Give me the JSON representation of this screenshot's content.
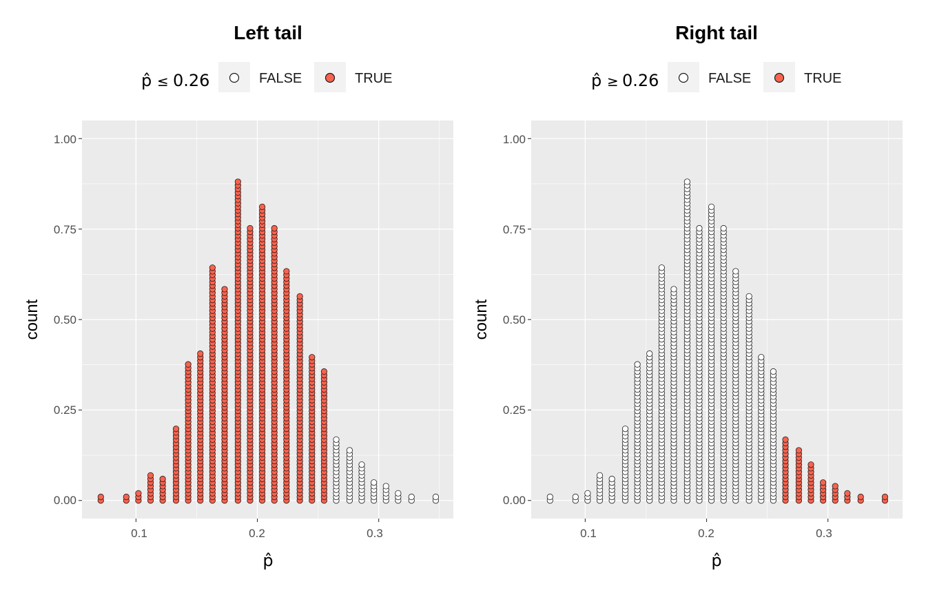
{
  "chart_data": [
    {
      "type": "scatter",
      "title": "Left tail",
      "legend": {
        "title_symbol": "p̂",
        "title_relation": "≤",
        "title_value": "0.26",
        "entries": [
          {
            "label": "FALSE",
            "fill": "#ffffff"
          },
          {
            "label": "TRUE",
            "fill": "#f8634e"
          }
        ],
        "position": "top"
      },
      "xlabel": "p̂",
      "ylabel": "count",
      "xlim": [
        0.0555,
        0.3615
      ],
      "ylim": [
        -0.05,
        1.05
      ],
      "x_ticks": [
        0.1,
        0.2,
        0.3
      ],
      "x_tick_labels": [
        "0.1",
        "0.2",
        "0.3"
      ],
      "y_ticks": [
        0,
        0.25,
        0.5,
        0.75,
        1.0
      ],
      "y_tick_labels": [
        "0.00",
        "0.25",
        "0.50",
        "0.75",
        "1.00"
      ],
      "grid": true,
      "highlight_rule": "x <= 0.26",
      "x": [
        0.071,
        0.092,
        0.102,
        0.112,
        0.122,
        0.133,
        0.143,
        0.153,
        0.163,
        0.173,
        0.184,
        0.194,
        0.204,
        0.214,
        0.224,
        0.235,
        0.245,
        0.255,
        0.265,
        0.276,
        0.286,
        0.296,
        0.306,
        0.316,
        0.327,
        0.347
      ],
      "y": [
        0.005,
        0.005,
        0.02,
        0.07,
        0.06,
        0.2,
        0.38,
        0.41,
        0.64,
        0.58,
        0.88,
        0.75,
        0.81,
        0.75,
        0.63,
        0.56,
        0.4,
        0.36,
        0.17,
        0.14,
        0.1,
        0.045,
        0.035,
        0.02,
        0.005,
        0.01
      ],
      "highlighted": [
        true,
        true,
        true,
        true,
        true,
        true,
        true,
        true,
        true,
        true,
        true,
        true,
        true,
        true,
        true,
        true,
        true,
        true,
        false,
        false,
        false,
        false,
        false,
        false,
        false,
        false
      ]
    },
    {
      "type": "scatter",
      "title": "Right tail",
      "legend": {
        "title_symbol": "p̂",
        "title_relation": "≥",
        "title_value": "0.26",
        "entries": [
          {
            "label": "FALSE",
            "fill": "#ffffff"
          },
          {
            "label": "TRUE",
            "fill": "#f8634e"
          }
        ],
        "position": "top"
      },
      "xlabel": "p̂",
      "ylabel": "count",
      "xlim": [
        0.0555,
        0.3615
      ],
      "ylim": [
        -0.05,
        1.05
      ],
      "x_ticks": [
        0.1,
        0.2,
        0.3
      ],
      "x_tick_labels": [
        "0.1",
        "0.2",
        "0.3"
      ],
      "y_ticks": [
        0,
        0.25,
        0.5,
        0.75,
        1.0
      ],
      "y_tick_labels": [
        "0.00",
        "0.25",
        "0.50",
        "0.75",
        "1.00"
      ],
      "grid": true,
      "highlight_rule": "x >= 0.26",
      "x": [
        0.071,
        0.092,
        0.102,
        0.112,
        0.122,
        0.133,
        0.143,
        0.153,
        0.163,
        0.173,
        0.184,
        0.194,
        0.204,
        0.214,
        0.224,
        0.235,
        0.245,
        0.255,
        0.265,
        0.276,
        0.286,
        0.296,
        0.306,
        0.316,
        0.327,
        0.347
      ],
      "y": [
        0.005,
        0.005,
        0.02,
        0.07,
        0.06,
        0.2,
        0.38,
        0.41,
        0.64,
        0.58,
        0.88,
        0.75,
        0.81,
        0.75,
        0.63,
        0.56,
        0.4,
        0.36,
        0.17,
        0.14,
        0.1,
        0.045,
        0.035,
        0.02,
        0.005,
        0.01
      ],
      "highlighted": [
        false,
        false,
        false,
        false,
        false,
        false,
        false,
        false,
        false,
        false,
        false,
        false,
        false,
        false,
        false,
        false,
        false,
        false,
        true,
        true,
        true,
        true,
        true,
        true,
        true,
        true
      ]
    }
  ],
  "colors": {
    "panel_background": "#ebebeb",
    "grid": "#ffffff",
    "true_fill": "#f8634e",
    "false_fill": "#ffffff",
    "point_stroke": "#1a1a1a",
    "legend_key_background": "#f2f2f2"
  }
}
